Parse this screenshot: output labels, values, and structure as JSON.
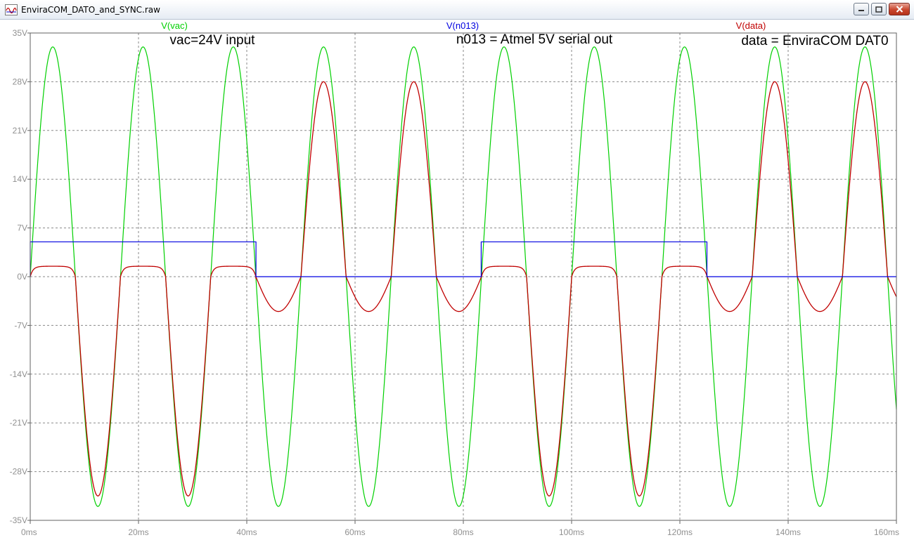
{
  "window": {
    "title": "EnviraCOM_DATO_and_SYNC.raw",
    "controls": [
      "minimize",
      "maximize",
      "close"
    ]
  },
  "colors": {
    "vac": "#00d000",
    "n013": "#0000e0",
    "data": "#c00000",
    "grid": "#8a8a8a",
    "tick_text": "#909090",
    "frame": "#606060"
  },
  "annotations": [
    {
      "text": "vac=24V input"
    },
    {
      "text": "n013 = Atmel 5V serial out"
    },
    {
      "text": "data = EnviraCOM DAT0"
    }
  ],
  "chart_data": {
    "type": "line",
    "title": "",
    "xlabel": "",
    "ylabel": "",
    "xlim": [
      0,
      160
    ],
    "ylim": [
      -35,
      35
    ],
    "x_unit": "ms",
    "y_unit": "V",
    "grid": true,
    "xticks": [
      "0ms",
      "20ms",
      "40ms",
      "60ms",
      "80ms",
      "100ms",
      "120ms",
      "140ms",
      "160ms"
    ],
    "yticks": [
      "35V",
      "28V",
      "21V",
      "14V",
      "7V",
      "0V",
      "-7V",
      "-14V",
      "-21V",
      "-28V",
      "-35V"
    ],
    "series": [
      {
        "name": "V(vac)",
        "kind": "sine",
        "amplitude_v": 33,
        "period_ms": 16.67,
        "phase_ms": 0
      },
      {
        "name": "V(n013)",
        "kind": "square",
        "high_v": 5,
        "low_v": 0,
        "transitions_ms": [
          0,
          41.7,
          83.3,
          125
        ],
        "levels": [
          5,
          0,
          5,
          0
        ]
      },
      {
        "name": "V(data)",
        "kind": "piecewise",
        "description_points": [
          {
            "state": "n013 high",
            "positive_half_clamp_v": 1.5,
            "negative_peak_v": -31.5
          },
          {
            "state": "n013 low",
            "positive_peak_v": 28,
            "negative_peak_v": -5
          }
        ]
      }
    ]
  }
}
